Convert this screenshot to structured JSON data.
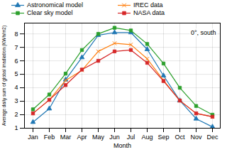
{
  "chart_data": {
    "type": "line",
    "xlabel": "Month",
    "ylabel": "Average daily sum of global irradiation (KWh/m2)",
    "annotation": "0°, south",
    "categories": [
      "Jan",
      "Feb",
      "Mar",
      "Apr",
      "May",
      "Jun",
      "Jul",
      "Aug",
      "Sep",
      "Oct",
      "Nov",
      "Dec"
    ],
    "series": [
      {
        "name": "Astronomical model",
        "color": "#1f77b4",
        "marker": "triangle",
        "values": [
          1.45,
          2.45,
          4.6,
          6.25,
          7.9,
          8.1,
          8.1,
          6.85,
          4.9,
          3.05,
          1.7,
          1.1
        ]
      },
      {
        "name": "IREC data",
        "color": "#ff7f0e",
        "marker": "x",
        "values": [
          2.1,
          3.1,
          4.55,
          5.3,
          6.7,
          7.3,
          7.2,
          6.15,
          4.55,
          3.05,
          2.1,
          1.85
        ]
      },
      {
        "name": "Clear sky model",
        "color": "#2ca02c",
        "marker": "square",
        "values": [
          2.4,
          3.5,
          5.05,
          6.8,
          8.0,
          8.45,
          8.25,
          7.25,
          5.8,
          4.0,
          2.65,
          2.0
        ]
      },
      {
        "name": "NASA data",
        "color": "#d62728",
        "marker": "square",
        "values": [
          2.1,
          3.1,
          4.2,
          5.35,
          6.0,
          6.7,
          6.8,
          5.85,
          4.5,
          3.05,
          2.1,
          1.85
        ]
      }
    ],
    "ylim": [
      1.0,
      8.8
    ],
    "yticks": [
      1,
      2,
      3,
      4,
      5,
      6,
      7,
      8
    ],
    "grid": true,
    "legend": "top"
  }
}
